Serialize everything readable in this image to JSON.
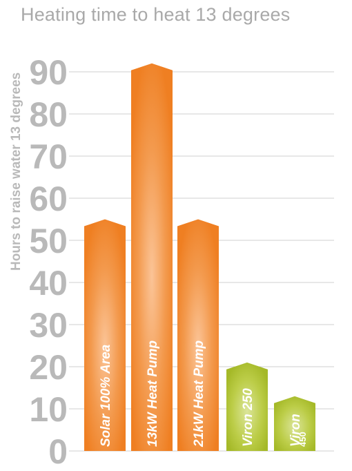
{
  "chart_data": {
    "type": "bar",
    "title": "Heating time to heat 13 degrees",
    "ylabel": "Hours to raise water 13 degrees",
    "xlabel": "",
    "ylim": [
      0,
      90
    ],
    "yticks": [
      0,
      10,
      20,
      30,
      40,
      50,
      60,
      70,
      80,
      90
    ],
    "grid": true,
    "bars": [
      {
        "label": "Solar 100% Area",
        "value": 55,
        "color": "#f08428"
      },
      {
        "label": "13kW Heat Pump",
        "value": 92,
        "color": "#f08428"
      },
      {
        "label": "21kW Heat Pump",
        "value": 55,
        "color": "#f08428"
      },
      {
        "label": "Viron 250",
        "value": 21,
        "color": "#a9bd2a"
      },
      {
        "label": "Viron",
        "label_small": "450",
        "value": 13,
        "color": "#a9bd2a"
      }
    ]
  }
}
